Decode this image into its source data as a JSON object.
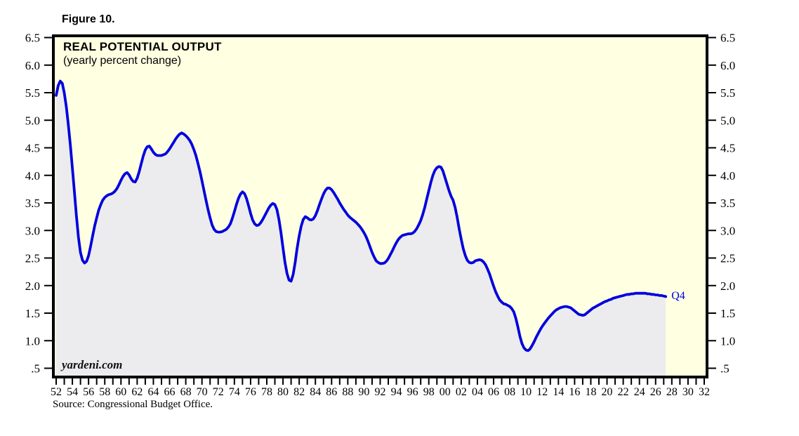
{
  "figure": {
    "label": "Figure 10."
  },
  "chart": {
    "title": "REAL POTENTIAL OUTPUT",
    "subtitle": "(yearly percent change)",
    "watermark": "yardeni.com",
    "end_label": "Q4",
    "colors": {
      "plot_bg": "#FFFFE2",
      "area_fill": "#ECECEF",
      "line": "#0000DE",
      "axis": "#000000",
      "text": "#000000"
    }
  },
  "source_note": "Source: Congressional Budget Office.",
  "chart_data": {
    "type": "area",
    "title": "REAL POTENTIAL OUTPUT",
    "subtitle": "(yearly percent change)",
    "series_name": "Real potential output, yearly percent change (CBO estimate with projection, last point Q4)",
    "xlim": [
      1952,
      2032.2
    ],
    "ylim": [
      0.5,
      6.5
    ],
    "grid": false,
    "legend": "none",
    "y_ticks": {
      "values": [
        6.5,
        6.0,
        5.5,
        5.0,
        4.5,
        4.0,
        3.5,
        3.0,
        2.5,
        2.0,
        1.5,
        1.0,
        0.5
      ],
      "labels": [
        "6.5",
        "6.0",
        "5.5",
        "5.0",
        "4.5",
        "4.0",
        "3.5",
        "3.0",
        "2.5",
        "2.0",
        "1.5",
        "1.0",
        ".5"
      ]
    },
    "x_minor_ticks": {
      "start": 1952,
      "end": 2032,
      "step": 1
    },
    "x_labels": {
      "years": [
        1952,
        1954,
        1956,
        1958,
        1960,
        1962,
        1964,
        1966,
        1968,
        1970,
        1972,
        1974,
        1976,
        1978,
        1980,
        1982,
        1984,
        1986,
        1988,
        1990,
        1992,
        1994,
        1996,
        1998,
        2000,
        2002,
        2004,
        2006,
        2008,
        2010,
        2012,
        2014,
        2016,
        2018,
        2020,
        2022,
        2024,
        2026,
        2028,
        2030,
        2032
      ],
      "texts": [
        "52",
        "54",
        "56",
        "58",
        "60",
        "62",
        "64",
        "66",
        "68",
        "70",
        "72",
        "74",
        "76",
        "78",
        "80",
        "82",
        "84",
        "86",
        "88",
        "90",
        "92",
        "94",
        "96",
        "98",
        "00",
        "02",
        "04",
        "06",
        "08",
        "10",
        "12",
        "14",
        "16",
        "18",
        "20",
        "22",
        "24",
        "26",
        "28",
        "30",
        "32"
      ]
    },
    "points": [
      [
        1952.0,
        5.45
      ],
      [
        1952.25,
        5.63
      ],
      [
        1952.5,
        5.71
      ],
      [
        1952.75,
        5.67
      ],
      [
        1953.0,
        5.5
      ],
      [
        1953.25,
        5.25
      ],
      [
        1953.5,
        4.92
      ],
      [
        1953.75,
        4.55
      ],
      [
        1954.0,
        4.13
      ],
      [
        1954.25,
        3.7
      ],
      [
        1954.5,
        3.27
      ],
      [
        1954.75,
        2.88
      ],
      [
        1955.0,
        2.6
      ],
      [
        1955.25,
        2.46
      ],
      [
        1955.5,
        2.41
      ],
      [
        1955.75,
        2.44
      ],
      [
        1956.0,
        2.54
      ],
      [
        1956.25,
        2.71
      ],
      [
        1956.5,
        2.9
      ],
      [
        1956.75,
        3.08
      ],
      [
        1957.0,
        3.23
      ],
      [
        1957.25,
        3.37
      ],
      [
        1957.5,
        3.47
      ],
      [
        1957.75,
        3.55
      ],
      [
        1958.0,
        3.6
      ],
      [
        1958.25,
        3.63
      ],
      [
        1958.5,
        3.65
      ],
      [
        1958.75,
        3.66
      ],
      [
        1959.0,
        3.68
      ],
      [
        1959.25,
        3.71
      ],
      [
        1959.5,
        3.76
      ],
      [
        1959.75,
        3.83
      ],
      [
        1960.0,
        3.91
      ],
      [
        1960.25,
        3.98
      ],
      [
        1960.5,
        4.03
      ],
      [
        1960.75,
        4.05
      ],
      [
        1961.0,
        4.01
      ],
      [
        1961.25,
        3.94
      ],
      [
        1961.5,
        3.89
      ],
      [
        1961.75,
        3.88
      ],
      [
        1962.0,
        3.95
      ],
      [
        1962.25,
        4.07
      ],
      [
        1962.5,
        4.21
      ],
      [
        1962.75,
        4.35
      ],
      [
        1963.0,
        4.46
      ],
      [
        1963.25,
        4.52
      ],
      [
        1963.5,
        4.53
      ],
      [
        1963.75,
        4.48
      ],
      [
        1964.0,
        4.42
      ],
      [
        1964.25,
        4.38
      ],
      [
        1964.5,
        4.36
      ],
      [
        1965.0,
        4.36
      ],
      [
        1965.5,
        4.39
      ],
      [
        1965.75,
        4.43
      ],
      [
        1966.0,
        4.48
      ],
      [
        1966.25,
        4.54
      ],
      [
        1966.5,
        4.6
      ],
      [
        1966.75,
        4.66
      ],
      [
        1967.0,
        4.71
      ],
      [
        1967.25,
        4.75
      ],
      [
        1967.5,
        4.77
      ],
      [
        1967.75,
        4.75
      ],
      [
        1968.0,
        4.72
      ],
      [
        1968.25,
        4.68
      ],
      [
        1968.5,
        4.63
      ],
      [
        1968.75,
        4.56
      ],
      [
        1969.0,
        4.47
      ],
      [
        1969.25,
        4.36
      ],
      [
        1969.5,
        4.22
      ],
      [
        1969.75,
        4.07
      ],
      [
        1970.0,
        3.9
      ],
      [
        1970.25,
        3.72
      ],
      [
        1970.5,
        3.55
      ],
      [
        1970.75,
        3.38
      ],
      [
        1971.0,
        3.23
      ],
      [
        1971.25,
        3.1
      ],
      [
        1971.5,
        3.02
      ],
      [
        1971.75,
        2.98
      ],
      [
        1972.0,
        2.97
      ],
      [
        1972.25,
        2.97
      ],
      [
        1972.5,
        2.98
      ],
      [
        1972.75,
        3.0
      ],
      [
        1973.0,
        3.02
      ],
      [
        1973.25,
        3.06
      ],
      [
        1973.5,
        3.12
      ],
      [
        1973.75,
        3.22
      ],
      [
        1974.0,
        3.34
      ],
      [
        1974.25,
        3.47
      ],
      [
        1974.5,
        3.58
      ],
      [
        1974.75,
        3.66
      ],
      [
        1975.0,
        3.7
      ],
      [
        1975.25,
        3.67
      ],
      [
        1975.5,
        3.58
      ],
      [
        1975.75,
        3.45
      ],
      [
        1976.0,
        3.31
      ],
      [
        1976.25,
        3.19
      ],
      [
        1976.5,
        3.12
      ],
      [
        1976.75,
        3.09
      ],
      [
        1977.0,
        3.1
      ],
      [
        1977.25,
        3.14
      ],
      [
        1977.5,
        3.2
      ],
      [
        1977.75,
        3.27
      ],
      [
        1978.0,
        3.34
      ],
      [
        1978.25,
        3.41
      ],
      [
        1978.5,
        3.46
      ],
      [
        1978.75,
        3.49
      ],
      [
        1979.0,
        3.47
      ],
      [
        1979.25,
        3.38
      ],
      [
        1979.5,
        3.2
      ],
      [
        1979.75,
        2.96
      ],
      [
        1980.0,
        2.68
      ],
      [
        1980.25,
        2.42
      ],
      [
        1980.5,
        2.22
      ],
      [
        1980.75,
        2.1
      ],
      [
        1981.0,
        2.08
      ],
      [
        1981.25,
        2.2
      ],
      [
        1981.5,
        2.42
      ],
      [
        1981.75,
        2.68
      ],
      [
        1982.0,
        2.9
      ],
      [
        1982.25,
        3.08
      ],
      [
        1982.5,
        3.2
      ],
      [
        1982.75,
        3.25
      ],
      [
        1983.0,
        3.23
      ],
      [
        1983.25,
        3.2
      ],
      [
        1983.5,
        3.19
      ],
      [
        1983.75,
        3.21
      ],
      [
        1984.0,
        3.27
      ],
      [
        1984.25,
        3.36
      ],
      [
        1984.5,
        3.47
      ],
      [
        1984.75,
        3.57
      ],
      [
        1985.0,
        3.66
      ],
      [
        1985.25,
        3.73
      ],
      [
        1985.5,
        3.77
      ],
      [
        1985.75,
        3.77
      ],
      [
        1986.0,
        3.74
      ],
      [
        1986.25,
        3.69
      ],
      [
        1986.5,
        3.63
      ],
      [
        1986.75,
        3.57
      ],
      [
        1987.0,
        3.5
      ],
      [
        1987.25,
        3.44
      ],
      [
        1987.5,
        3.38
      ],
      [
        1987.75,
        3.33
      ],
      [
        1988.0,
        3.28
      ],
      [
        1988.25,
        3.24
      ],
      [
        1988.5,
        3.21
      ],
      [
        1988.75,
        3.18
      ],
      [
        1989.0,
        3.15
      ],
      [
        1989.25,
        3.11
      ],
      [
        1989.5,
        3.07
      ],
      [
        1989.75,
        3.02
      ],
      [
        1990.0,
        2.96
      ],
      [
        1990.25,
        2.89
      ],
      [
        1990.5,
        2.8
      ],
      [
        1990.75,
        2.7
      ],
      [
        1991.0,
        2.6
      ],
      [
        1991.25,
        2.52
      ],
      [
        1991.5,
        2.45
      ],
      [
        1991.75,
        2.42
      ],
      [
        1992.0,
        2.4
      ],
      [
        1992.25,
        2.4
      ],
      [
        1992.5,
        2.41
      ],
      [
        1992.75,
        2.44
      ],
      [
        1993.0,
        2.49
      ],
      [
        1993.25,
        2.56
      ],
      [
        1993.5,
        2.63
      ],
      [
        1993.75,
        2.71
      ],
      [
        1994.0,
        2.78
      ],
      [
        1994.25,
        2.84
      ],
      [
        1994.5,
        2.88
      ],
      [
        1994.75,
        2.91
      ],
      [
        1995.0,
        2.92
      ],
      [
        1995.25,
        2.93
      ],
      [
        1995.5,
        2.94
      ],
      [
        1995.75,
        2.94
      ],
      [
        1996.0,
        2.95
      ],
      [
        1996.25,
        2.98
      ],
      [
        1996.5,
        3.03
      ],
      [
        1996.75,
        3.1
      ],
      [
        1997.0,
        3.18
      ],
      [
        1997.25,
        3.29
      ],
      [
        1997.5,
        3.42
      ],
      [
        1997.75,
        3.57
      ],
      [
        1998.0,
        3.72
      ],
      [
        1998.25,
        3.87
      ],
      [
        1998.5,
        4.0
      ],
      [
        1998.75,
        4.09
      ],
      [
        1999.0,
        4.14
      ],
      [
        1999.25,
        4.16
      ],
      [
        1999.5,
        4.15
      ],
      [
        1999.75,
        4.08
      ],
      [
        2000.0,
        3.96
      ],
      [
        2000.25,
        3.84
      ],
      [
        2000.5,
        3.72
      ],
      [
        2000.75,
        3.62
      ],
      [
        2001.0,
        3.55
      ],
      [
        2001.25,
        3.42
      ],
      [
        2001.5,
        3.24
      ],
      [
        2001.75,
        3.03
      ],
      [
        2002.0,
        2.84
      ],
      [
        2002.25,
        2.67
      ],
      [
        2002.5,
        2.55
      ],
      [
        2002.75,
        2.46
      ],
      [
        2003.0,
        2.42
      ],
      [
        2003.25,
        2.41
      ],
      [
        2003.5,
        2.42
      ],
      [
        2003.75,
        2.45
      ],
      [
        2004.0,
        2.46
      ],
      [
        2004.25,
        2.47
      ],
      [
        2004.5,
        2.46
      ],
      [
        2004.75,
        2.43
      ],
      [
        2005.0,
        2.38
      ],
      [
        2005.25,
        2.3
      ],
      [
        2005.5,
        2.21
      ],
      [
        2005.75,
        2.1
      ],
      [
        2006.0,
        1.99
      ],
      [
        2006.25,
        1.89
      ],
      [
        2006.5,
        1.81
      ],
      [
        2006.75,
        1.74
      ],
      [
        2007.0,
        1.7
      ],
      [
        2007.25,
        1.67
      ],
      [
        2007.5,
        1.66
      ],
      [
        2007.75,
        1.64
      ],
      [
        2008.0,
        1.62
      ],
      [
        2008.25,
        1.58
      ],
      [
        2008.5,
        1.52
      ],
      [
        2008.75,
        1.4
      ],
      [
        2009.0,
        1.25
      ],
      [
        2009.25,
        1.08
      ],
      [
        2009.5,
        0.95
      ],
      [
        2009.75,
        0.87
      ],
      [
        2010.0,
        0.83
      ],
      [
        2010.25,
        0.82
      ],
      [
        2010.5,
        0.85
      ],
      [
        2010.75,
        0.91
      ],
      [
        2011.0,
        0.98
      ],
      [
        2011.25,
        1.06
      ],
      [
        2011.5,
        1.13
      ],
      [
        2011.75,
        1.2
      ],
      [
        2012.0,
        1.26
      ],
      [
        2012.25,
        1.31
      ],
      [
        2012.5,
        1.36
      ],
      [
        2012.75,
        1.41
      ],
      [
        2013.0,
        1.45
      ],
      [
        2013.25,
        1.49
      ],
      [
        2013.5,
        1.53
      ],
      [
        2013.75,
        1.56
      ],
      [
        2014.0,
        1.58
      ],
      [
        2014.25,
        1.6
      ],
      [
        2014.5,
        1.61
      ],
      [
        2014.75,
        1.62
      ],
      [
        2015.0,
        1.62
      ],
      [
        2015.25,
        1.61
      ],
      [
        2015.5,
        1.6
      ],
      [
        2015.75,
        1.57
      ],
      [
        2016.0,
        1.54
      ],
      [
        2016.25,
        1.51
      ],
      [
        2016.5,
        1.48
      ],
      [
        2016.75,
        1.47
      ],
      [
        2017.0,
        1.46
      ],
      [
        2017.25,
        1.47
      ],
      [
        2017.5,
        1.5
      ],
      [
        2017.75,
        1.53
      ],
      [
        2018.0,
        1.56
      ],
      [
        2018.25,
        1.59
      ],
      [
        2018.5,
        1.61
      ],
      [
        2018.75,
        1.63
      ],
      [
        2019.0,
        1.65
      ],
      [
        2019.25,
        1.67
      ],
      [
        2019.5,
        1.69
      ],
      [
        2019.75,
        1.71
      ],
      [
        2020.0,
        1.72
      ],
      [
        2020.25,
        1.74
      ],
      [
        2020.5,
        1.75
      ],
      [
        2020.75,
        1.77
      ],
      [
        2021.0,
        1.78
      ],
      [
        2021.25,
        1.79
      ],
      [
        2021.5,
        1.8
      ],
      [
        2021.75,
        1.81
      ],
      [
        2022.0,
        1.82
      ],
      [
        2022.25,
        1.83
      ],
      [
        2022.5,
        1.84
      ],
      [
        2022.75,
        1.84
      ],
      [
        2023.0,
        1.85
      ],
      [
        2023.25,
        1.85
      ],
      [
        2023.5,
        1.86
      ],
      [
        2023.75,
        1.86
      ],
      [
        2024.0,
        1.86
      ],
      [
        2024.25,
        1.86
      ],
      [
        2024.5,
        1.86
      ],
      [
        2024.75,
        1.86
      ],
      [
        2025.0,
        1.85
      ],
      [
        2025.25,
        1.85
      ],
      [
        2025.5,
        1.84
      ],
      [
        2025.75,
        1.84
      ],
      [
        2026.0,
        1.83
      ],
      [
        2026.25,
        1.83
      ],
      [
        2026.5,
        1.82
      ],
      [
        2026.75,
        1.82
      ],
      [
        2027.0,
        1.81
      ],
      [
        2027.25,
        1.8
      ]
    ]
  }
}
